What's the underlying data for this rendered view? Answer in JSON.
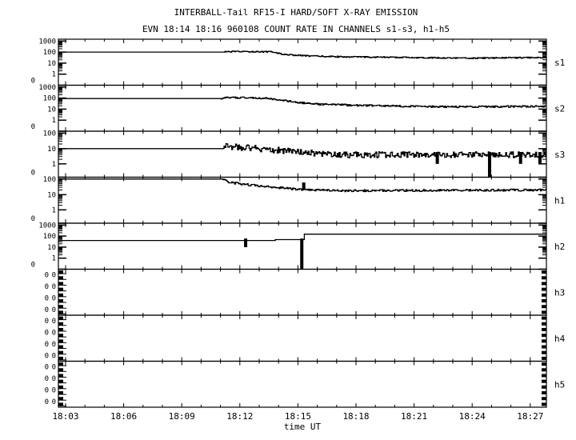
{
  "chart_data": {
    "type": "line",
    "title": "INTERBALL-Tail RF15-I HARD/SOFT X-RAY EMISSION",
    "subtitle": "EVN 18:14 18:16 960108  COUNT RATE IN CHANNELS s1-s3, h1-h5",
    "xlabel": "time UT",
    "x_unit": "minutes after 18:03",
    "x_range": [
      -0.37,
      24.8
    ],
    "x_ticks": [
      "18:03",
      "18:06",
      "18:09",
      "18:12",
      "18:15",
      "18:18",
      "18:21",
      "18:24",
      "18:27"
    ],
    "grid": false,
    "panels": [
      {
        "name": "s1",
        "scale": "log4",
        "y_ticks": [
          "1000",
          "100",
          "10",
          "1",
          "0"
        ],
        "onset": 8.2,
        "noise": 0.12,
        "keypoints": [
          [
            -0.4,
            100
          ],
          [
            8.2,
            100
          ],
          [
            8.3,
            110
          ],
          [
            10.6,
            108
          ],
          [
            11.3,
            60
          ],
          [
            12.5,
            45
          ],
          [
            14,
            38
          ],
          [
            18,
            32
          ],
          [
            21,
            28
          ],
          [
            24.8,
            33
          ]
        ]
      },
      {
        "name": "s2",
        "scale": "log4",
        "y_ticks": [
          "1000",
          "100",
          "10",
          "1",
          "0"
        ],
        "onset": 8.0,
        "noise": 0.18,
        "keypoints": [
          [
            -0.4,
            90
          ],
          [
            8,
            90
          ],
          [
            8.2,
            105
          ],
          [
            9.5,
            110
          ],
          [
            10.5,
            90
          ],
          [
            12,
            40
          ],
          [
            13,
            28
          ],
          [
            16,
            20
          ],
          [
            20,
            16
          ],
          [
            24.8,
            18
          ]
        ]
      },
      {
        "name": "s3",
        "scale": "log3",
        "y_ticks": [
          "100",
          "10",
          "1",
          "0"
        ],
        "onset": 8.1,
        "noise": 0.45,
        "keypoints": [
          [
            -0.4,
            10
          ],
          [
            8.1,
            10
          ],
          [
            8.2,
            14
          ],
          [
            10,
            10
          ],
          [
            12,
            6
          ],
          [
            14,
            4
          ],
          [
            24.8,
            4
          ]
        ],
        "spikes": [
          [
            19.2,
            1,
            6
          ],
          [
            21.9,
            0,
            6
          ],
          [
            23.5,
            1,
            6
          ],
          [
            24.5,
            1,
            6
          ]
        ]
      },
      {
        "name": "h1",
        "scale": "log3",
        "y_ticks": [
          "100",
          "10",
          "1",
          "0"
        ],
        "onset": 8.1,
        "noise": 0.15,
        "keypoints": [
          [
            -0.4,
            100
          ],
          [
            8.1,
            100
          ],
          [
            8.5,
            60
          ],
          [
            10,
            35
          ],
          [
            12,
            22
          ],
          [
            14,
            18
          ],
          [
            24.8,
            20
          ]
        ],
        "spikes": [
          [
            12.3,
            20,
            60
          ]
        ]
      },
      {
        "name": "h2",
        "scale": "log4",
        "y_ticks": [
          "1000",
          "100",
          "10",
          "1",
          "0"
        ],
        "onset": 99,
        "noise": 0,
        "keypoints": [
          [
            -0.4,
            40
          ],
          [
            10.8,
            40
          ],
          [
            10.8,
            48
          ],
          [
            12.3,
            48
          ],
          [
            12.3,
            150
          ],
          [
            24.8,
            150
          ]
        ],
        "spikes": [
          [
            9.3,
            10,
            60
          ],
          [
            12.2,
            0,
            60
          ]
        ]
      },
      {
        "name": "h3",
        "scale": "zero",
        "y_ticks": [
          "0",
          "0",
          "0",
          "0",
          "0",
          "0",
          "0",
          "0"
        ],
        "keypoints": []
      },
      {
        "name": "h4",
        "scale": "zero",
        "y_ticks": [
          "0",
          "0",
          "0",
          "0",
          "0",
          "0",
          "0",
          "0"
        ],
        "keypoints": []
      },
      {
        "name": "h5",
        "scale": "zero",
        "y_ticks": [
          "0",
          "0",
          "0",
          "0",
          "0",
          "0",
          "0",
          "0"
        ],
        "keypoints": []
      }
    ]
  }
}
